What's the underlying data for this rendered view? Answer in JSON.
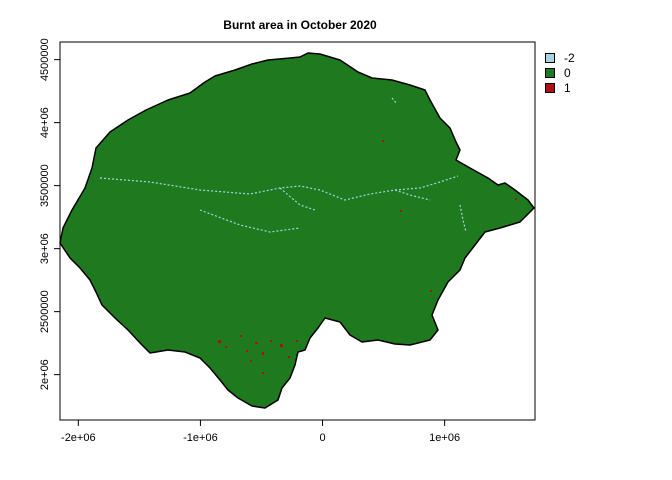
{
  "title": "Burnt area in October 2020",
  "legend": [
    {
      "label": "-2",
      "color": "#a6d3e3"
    },
    {
      "label": "0",
      "color": "#1f7a1f"
    },
    {
      "label": "1",
      "color": "#b01010"
    }
  ],
  "x_ticks": [
    {
      "value": -2000000,
      "label": "-2e+06"
    },
    {
      "value": -1000000,
      "label": "-1e+06"
    },
    {
      "value": 0,
      "label": "0"
    },
    {
      "value": 1000000,
      "label": "1e+06"
    }
  ],
  "y_ticks": [
    {
      "value": 2000000,
      "label": "2e+06"
    },
    {
      "value": 2500000,
      "label": "2500000"
    },
    {
      "value": 3000000,
      "label": "3e+06"
    },
    {
      "value": 3500000,
      "label": "3500000"
    },
    {
      "value": 4000000,
      "label": "4e+06"
    },
    {
      "value": 4500000,
      "label": "4500000"
    }
  ],
  "x_range": [
    -2150000,
    1740000
  ],
  "y_range": [
    1640000,
    4640000
  ]
}
